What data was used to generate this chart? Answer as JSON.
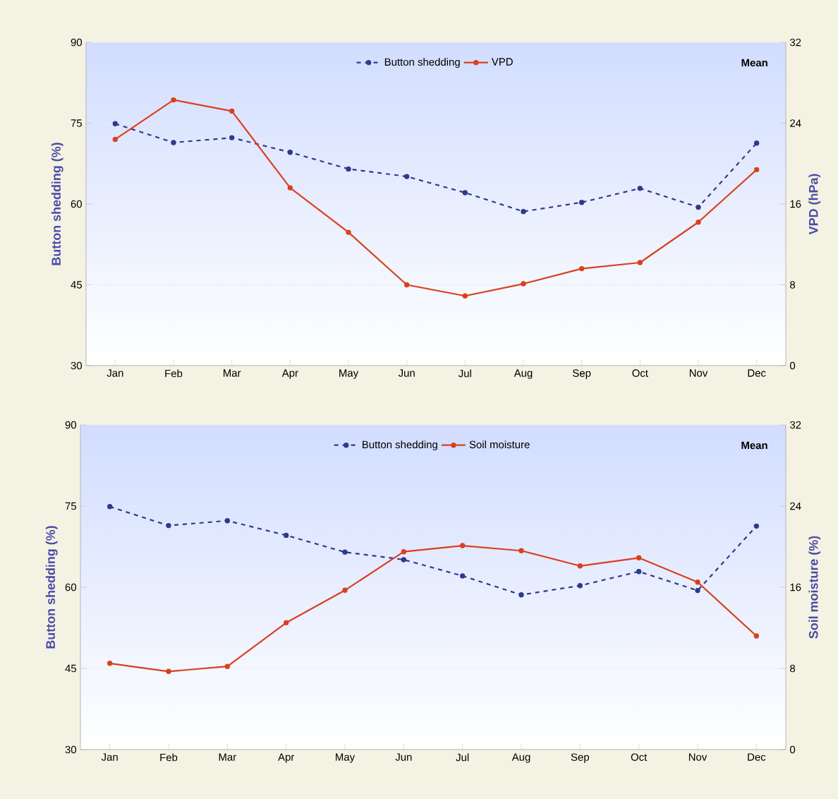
{
  "chart_data": [
    {
      "type": "line",
      "categories": [
        "Jan",
        "Feb",
        "Mar",
        "Apr",
        "May",
        "Jun",
        "Jul",
        "Aug",
        "Sep",
        "Oct",
        "Nov",
        "Dec"
      ],
      "series": [
        {
          "name": "Button shedding",
          "color": "#2e3a8c",
          "line_style": "dashed",
          "values": [
            74.9,
            71.4,
            72.3,
            69.6,
            66.5,
            65.1,
            62.1,
            58.6,
            60.3,
            62.9,
            59.4,
            71.3
          ]
        },
        {
          "name": "VPD",
          "color": "#d9401e",
          "axis": "y2",
          "line_style": "solid",
          "values": [
            22.4,
            26.3,
            25.2,
            17.6,
            13.2,
            8.0,
            6.9,
            8.1,
            9.6,
            10.2,
            14.2,
            19.4
          ]
        }
      ],
      "ylabel": "Button shedding (%)",
      "y2label": "VPD (hPa)",
      "ylim": [
        30,
        90
      ],
      "yticks": [
        30,
        45,
        60,
        75,
        90
      ],
      "y2lim": [
        0,
        32
      ],
      "y2ticks": [
        0,
        8,
        16,
        24,
        32
      ],
      "annotations": [
        "Mean"
      ],
      "legend": "top",
      "grid": "y",
      "marker": "circle"
    },
    {
      "type": "line",
      "categories": [
        "Jan",
        "Feb",
        "Mar",
        "Apr",
        "May",
        "Jun",
        "Jul",
        "Aug",
        "Sep",
        "Oct",
        "Nov",
        "Dec"
      ],
      "series": [
        {
          "name": "Button shedding",
          "color": "#2e3a8c",
          "line_style": "dashed",
          "values": [
            74.9,
            71.4,
            72.3,
            69.6,
            66.5,
            65.1,
            62.1,
            58.6,
            60.3,
            62.9,
            59.4,
            71.3
          ]
        },
        {
          "name": "Soil moisture",
          "color": "#d9401e",
          "axis": "y2",
          "line_style": "solid",
          "values": [
            8.5,
            7.7,
            8.2,
            12.5,
            15.7,
            19.5,
            20.1,
            19.6,
            18.1,
            18.9,
            16.5,
            11.2
          ]
        }
      ],
      "ylabel": "Button shedding (%)",
      "y2label": "Soil moisture (%)",
      "ylim": [
        30,
        90
      ],
      "yticks": [
        30,
        45,
        60,
        75,
        90
      ],
      "y2lim": [
        0,
        32
      ],
      "y2ticks": [
        0,
        8,
        16,
        24,
        32
      ],
      "annotations": [
        "Mean"
      ],
      "legend": "top",
      "grid": "y",
      "marker": "circle"
    }
  ]
}
